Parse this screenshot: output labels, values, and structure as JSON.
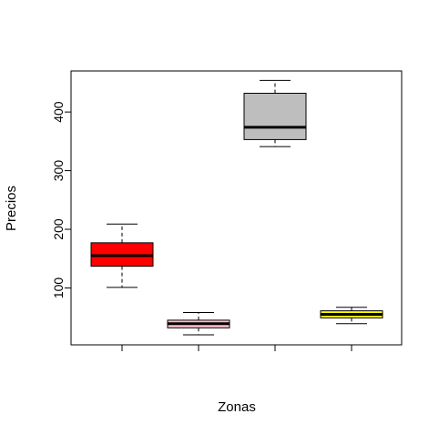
{
  "chart_data": {
    "type": "boxplot",
    "title": "",
    "xlabel": "Zonas",
    "ylabel": "Precios",
    "ylim": [
      3,
      470
    ],
    "yticks": [
      100,
      200,
      300,
      400
    ],
    "grid": false,
    "legend": "none",
    "categories": [
      "",
      "",
      "",
      ""
    ],
    "boxes": [
      {
        "fill": "#ff0000",
        "whisker_low": 101,
        "q1": 137,
        "median": 155,
        "q3": 177,
        "whisker_high": 209
      },
      {
        "fill": "#ffc0cb",
        "whisker_low": 20,
        "q1": 32,
        "median": 39,
        "q3": 45,
        "whisker_high": 58
      },
      {
        "fill": "#bebebe",
        "whisker_low": 341,
        "q1": 353,
        "median": 374,
        "q3": 432,
        "whisker_high": 454
      },
      {
        "fill": "#ffff00",
        "whisker_low": 39,
        "q1": 49,
        "median": 55,
        "q3": 61,
        "whisker_high": 67
      }
    ]
  }
}
